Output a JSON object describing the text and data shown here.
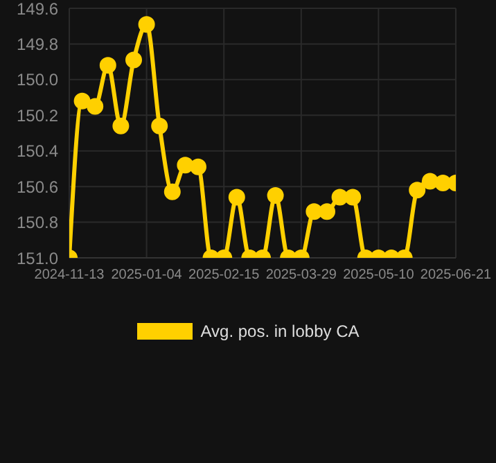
{
  "chart_data": {
    "type": "line",
    "categories": [
      "2024-11-13",
      null,
      null,
      null,
      null,
      null,
      "2025-01-04",
      null,
      null,
      null,
      null,
      null,
      "2025-02-15",
      null,
      null,
      null,
      null,
      null,
      "2025-03-29",
      null,
      null,
      null,
      null,
      null,
      "2025-05-10",
      null,
      null,
      null,
      null,
      null,
      "2025-06-21"
    ],
    "series": [
      {
        "name": "Avg. pos. in lobby CA",
        "color": "#ffd000",
        "values": [
          151.0,
          150.12,
          150.15,
          149.92,
          150.26,
          149.89,
          149.69,
          150.26,
          150.63,
          150.48,
          150.49,
          151.0,
          151.0,
          150.66,
          151.0,
          151.0,
          150.65,
          151.0,
          151.0,
          150.74,
          150.74,
          150.66,
          150.66,
          151.0,
          151.0,
          151.0,
          151.0,
          150.62,
          150.57,
          150.58,
          150.58
        ]
      }
    ],
    "ylim": [
      151.0,
      149.6
    ],
    "yticks": [
      149.6,
      149.8,
      {
        "value": 150,
        "label": "150.0"
      },
      150.2,
      150.4,
      150.6,
      150.8,
      {
        "value": 151,
        "label": "151.0"
      }
    ],
    "grid": true,
    "legend": "bottom",
    "marker": "circle",
    "line_style": "solid"
  }
}
